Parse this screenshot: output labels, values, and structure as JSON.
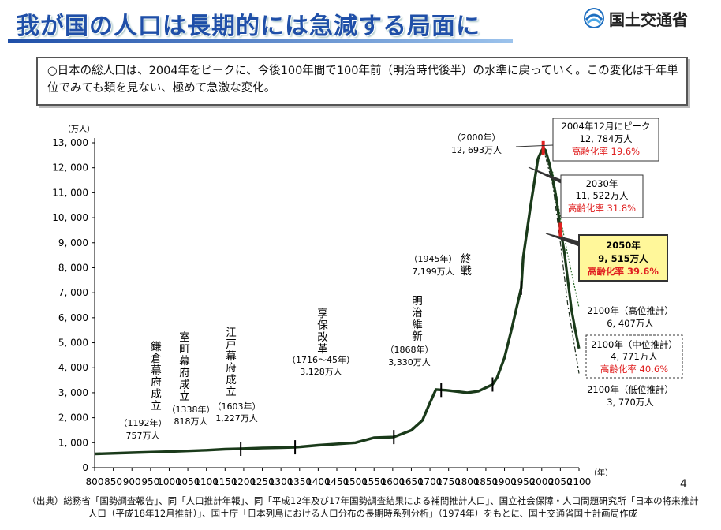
{
  "title": "我が国の人口は長期的には急減する局面に",
  "ministry": "国土交通省",
  "summary": "○日本の総人口は、2004年をピークに、今後100年間で100年前（明治時代後半）の水準に戻っていく。この変化は千年単位でみても類を見ない、極めて急激な変化。",
  "source": "（出典）総務省「国勢調査報告」、同「人口推計年報」、同「平成12年及び17年国勢調査結果による補間推計人口」、国立社会保障・人口問題研究所「日本の将来推計人口（平成18年12月推計）」、国土庁「日本列島における人口分布の長期時系列分析」（1974年）をもとに、国土交通省国土計画局作成",
  "page_number": "4",
  "colors": {
    "title": "#1f4fa8",
    "line": "#1a3a1a",
    "red": "#e02020",
    "highlight": "#fff79a"
  },
  "chart_data": {
    "type": "line",
    "yunit": "（万人）",
    "xunit": "（年）",
    "xlim": [
      800,
      2100
    ],
    "ylim": [
      0,
      13000
    ],
    "xticks": [
      800,
      1000,
      1200,
      1400,
      1600,
      1800,
      2000
    ],
    "xticks_labels": [
      "800",
      "1000",
      "1200",
      "1400",
      "1600",
      "1800",
      "2000"
    ],
    "xticks_all": [
      800,
      850,
      900,
      950,
      1000,
      1050,
      1100,
      1150,
      1200,
      1250,
      1300,
      1350,
      1400,
      1450,
      1500,
      1550,
      1600,
      1650,
      1700,
      1750,
      1800,
      1850,
      1900,
      1950,
      2000,
      2050,
      2100
    ],
    "yticks": [
      0,
      1000,
      2000,
      3000,
      4000,
      5000,
      6000,
      7000,
      8000,
      9000,
      10000,
      11000,
      12000,
      13000
    ],
    "yticks_labels": [
      "0",
      "1, 000",
      "2, 000",
      "3, 000",
      "4, 000",
      "5, 000",
      "6, 000",
      "7, 000",
      "8, 000",
      "9, 000",
      "10, 000",
      "11, 000",
      "12, 000",
      "13, 000"
    ],
    "series": [
      {
        "x": [
          800,
          900,
          1000,
          1100,
          1150,
          1192,
          1250,
          1300,
          1338,
          1400,
          1500,
          1550,
          1603,
          1650,
          1680,
          1700,
          1716,
          1745,
          1800,
          1830,
          1850,
          1868,
          1880,
          1900,
          1920,
          1945,
          1950,
          1970,
          1990,
          2000,
          2004
        ],
        "y": [
          551,
          600,
          644,
          700,
          740,
          757,
          790,
          800,
          818,
          900,
          1000,
          1200,
          1227,
          1500,
          1900,
          2600,
          3128,
          3100,
          3000,
          3060,
          3200,
          3330,
          3600,
          4400,
          5600,
          7199,
          8400,
          10466,
          12361,
          12693,
          12784
        ]
      },
      {
        "name": "中位推計",
        "x": [
          2004,
          2010,
          2020,
          2030,
          2040,
          2050,
          2060,
          2070,
          2080,
          2090,
          2100
        ],
        "y": [
          12784,
          12700,
          12200,
          11522,
          10700,
          9515,
          8700,
          7500,
          6300,
          5500,
          4771
        ]
      },
      {
        "name": "高位推計",
        "x": [
          2004,
          2030,
          2050,
          2070,
          2100
        ],
        "y": [
          12784,
          11800,
          10000,
          8500,
          6407
        ]
      },
      {
        "name": "低位推計",
        "x": [
          2004,
          2030,
          2050,
          2070,
          2100
        ],
        "y": [
          12784,
          11300,
          9000,
          6500,
          3770
        ]
      }
    ],
    "eras": [
      {
        "label": "鎌倉幕府成立",
        "year_label": "（1192年）",
        "value_label": "757万人",
        "x": 1192
      },
      {
        "label": "室町幕府成立",
        "year_label": "（1338年）",
        "value_label": "818万人",
        "x": 1338
      },
      {
        "label": "江戸幕府成立",
        "year_label": "（1603年）",
        "value_label": "1,227万人",
        "x": 1603
      },
      {
        "label": "享保改革",
        "year_label": "（1716～45年）",
        "value_label": "3,128万人",
        "x": 1730
      },
      {
        "label": "明治維新",
        "year_label": "（1868年）",
        "value_label": "3,330万人",
        "x": 1868
      },
      {
        "label": "終戦",
        "year_label": "（1945年）",
        "value_label": "7,199万人",
        "x": 1945
      }
    ],
    "annotations": {
      "y2000": {
        "line1": "（2000年）",
        "line2": "12, 693万人"
      },
      "peak": {
        "line1": "2004年12月にピーク",
        "line2": "12, 784万人",
        "line3": "高齢化率 19.6%"
      },
      "y2030": {
        "line1": "2030年",
        "line2": "11, 522万人",
        "line3": "高齢化率 31.8%"
      },
      "y2050": {
        "line1": "2050年",
        "line2": "9, 515万人",
        "line3": "高齢化率 39.6%"
      },
      "high": {
        "line1": "2100年（高位推計）",
        "line2": "6, 407万人"
      },
      "mid": {
        "line1": "2100年（中位推計）",
        "line2": "4, 771万人",
        "line3": "高齢化率 40.6%"
      },
      "low": {
        "line1": "2100年（低位推計）",
        "line2": "3, 770万人"
      }
    }
  }
}
